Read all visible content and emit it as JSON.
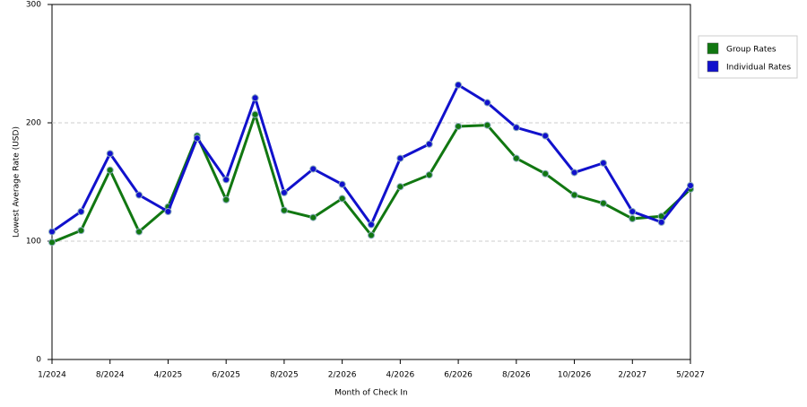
{
  "chart_data": {
    "type": "line",
    "x_label": "Month of Check In",
    "y_label": "Lowest Average Rate (USD)",
    "categories": [
      "1/2024",
      null,
      "8/2024",
      null,
      "4/2025",
      null,
      "6/2025",
      null,
      "8/2025",
      null,
      "2/2026",
      null,
      "4/2026",
      null,
      "6/2026",
      null,
      "8/2026",
      null,
      "10/2026",
      null,
      "2/2027",
      null,
      "5/2027"
    ],
    "series": [
      {
        "name": "Group Rates",
        "color": "#117711",
        "values": [
          99,
          109,
          160,
          108,
          129,
          189,
          135,
          207,
          126,
          120,
          136,
          105,
          146,
          156,
          197,
          198,
          170,
          157,
          139,
          132,
          119,
          121,
          144
        ]
      },
      {
        "name": "Individual Rates",
        "color": "#1111cc",
        "values": [
          108,
          125,
          174,
          139,
          125,
          187,
          152,
          221,
          141,
          161,
          148,
          114,
          170,
          182,
          232,
          217,
          196,
          189,
          158,
          166,
          125,
          116,
          147
        ]
      }
    ],
    "ylim": [
      0,
      300
    ],
    "yticks": [
      0,
      100,
      200,
      300
    ],
    "grid": true,
    "legend": "right"
  }
}
